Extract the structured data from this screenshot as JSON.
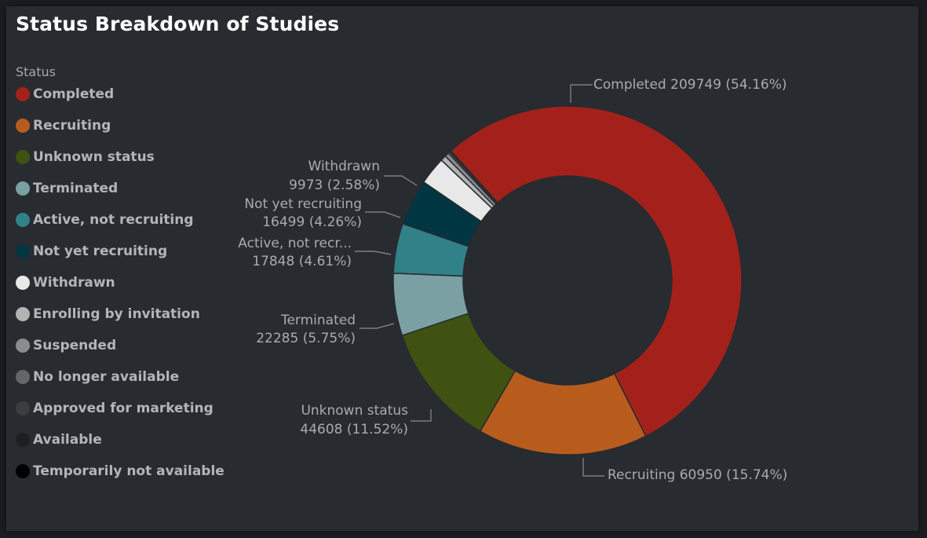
{
  "title": "Status Breakdown of Studies",
  "legend": {
    "title": "Status",
    "items": [
      {
        "label": "Completed",
        "color": "#a3211a"
      },
      {
        "label": "Recruiting",
        "color": "#b85c1e"
      },
      {
        "label": "Unknown status",
        "color": "#3f5211"
      },
      {
        "label": "Terminated",
        "color": "#7aa0a3"
      },
      {
        "label": "Active, not recruiting",
        "color": "#318188"
      },
      {
        "label": "Not yet recruiting",
        "color": "#003542"
      },
      {
        "label": "Withdrawn",
        "color": "#e8e8e8"
      },
      {
        "label": "Enrolling by invitation",
        "color": "#b3b3b3"
      },
      {
        "label": "Suspended",
        "color": "#8c8c8c"
      },
      {
        "label": "No longer available",
        "color": "#656565"
      },
      {
        "label": "Approved for marketing",
        "color": "#3d3d3d"
      },
      {
        "label": "Available",
        "color": "#1f1f1f"
      },
      {
        "label": "Temporarily not available",
        "color": "#000000"
      }
    ]
  },
  "chart_data": {
    "type": "pie",
    "title": "Status Breakdown of Studies",
    "donut": true,
    "legend_position": "left",
    "slices": [
      {
        "name": "Completed",
        "value": 209749,
        "percent": 54.16,
        "color": "#a3211a",
        "label_lines": [
          "Completed 209749 (54.16%)"
        ]
      },
      {
        "name": "Recruiting",
        "value": 60950,
        "percent": 15.74,
        "color": "#b85c1e",
        "label_lines": [
          "Recruiting 60950 (15.74%)"
        ]
      },
      {
        "name": "Unknown status",
        "value": 44608,
        "percent": 11.52,
        "color": "#3f5211",
        "label_lines": [
          "Unknown status",
          "44608 (11.52%)"
        ]
      },
      {
        "name": "Terminated",
        "value": 22285,
        "percent": 5.75,
        "color": "#7aa0a3",
        "label_lines": [
          "Terminated",
          "22285 (5.75%)"
        ]
      },
      {
        "name": "Active, not recruiting",
        "value": 17848,
        "percent": 4.61,
        "color": "#318188",
        "label_lines": [
          "Active, not recr...",
          "17848 (4.61%)"
        ]
      },
      {
        "name": "Not yet recruiting",
        "value": 16499,
        "percent": 4.26,
        "color": "#003542",
        "label_lines": [
          "Not yet recruiting",
          "16499 (4.26%)"
        ]
      },
      {
        "name": "Withdrawn",
        "value": 9973,
        "percent": 2.58,
        "color": "#e8e8e8",
        "label_lines": [
          "Withdrawn",
          "9973 (2.58%)"
        ]
      },
      {
        "name": "Enrolling by invitation",
        "value": 2000,
        "percent": 0.52,
        "color": "#b3b3b3",
        "label_lines": []
      },
      {
        "name": "Suspended",
        "value": 1500,
        "percent": 0.39,
        "color": "#8c8c8c",
        "label_lines": []
      },
      {
        "name": "No longer available",
        "value": 600,
        "percent": 0.15,
        "color": "#656565",
        "label_lines": []
      },
      {
        "name": "Approved for marketing",
        "value": 300,
        "percent": 0.08,
        "color": "#3d3d3d",
        "label_lines": []
      },
      {
        "name": "Available",
        "value": 200,
        "percent": 0.05,
        "color": "#1f1f1f",
        "label_lines": []
      },
      {
        "name": "Temporarily not available",
        "value": 100,
        "percent": 0.03,
        "color": "#000000",
        "label_lines": []
      }
    ]
  }
}
